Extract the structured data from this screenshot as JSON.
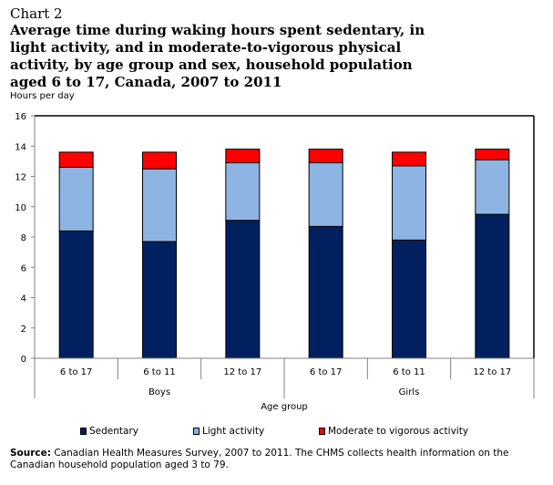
{
  "header": {
    "chart_label": "Chart 2",
    "title": "Average time during waking hours spent sedentary, in light activity, and in moderate-to-vigorous physical activity, by age group and sex, household population aged 6 to 17, Canada, 2007 to 2011",
    "y_unit": "Hours per day"
  },
  "footer": {
    "source_label": "Source:",
    "source_text": " Canadian Health Measures Survey, 2007 to 2011. The CHMS collects health information on the Canadian household population aged 3 to 79."
  },
  "colors": {
    "sedentary": "#002060",
    "light": "#8EB4E3",
    "mvpa": "#FF0000"
  },
  "chart_data": {
    "type": "bar",
    "stacked": true,
    "title": "Average time during waking hours spent sedentary, in light activity, and in moderate-to-vigorous physical activity, by age group and sex, household population aged 6 to 17, Canada, 2007 to 2011",
    "xlabel": "Age group",
    "ylabel": "Hours per day",
    "ylim": [
      0,
      16
    ],
    "yticks": [
      0,
      2,
      4,
      6,
      8,
      10,
      12,
      14,
      16
    ],
    "categories": [
      "6 to 17",
      "6 to 11",
      "12 to 17",
      "6 to 17",
      "6 to 11",
      "12 to 17"
    ],
    "groups": [
      {
        "label": "Boys",
        "span": [
          0,
          2
        ]
      },
      {
        "label": "Girls",
        "span": [
          3,
          5
        ]
      }
    ],
    "series": [
      {
        "name": "Sedentary",
        "color": "#002060",
        "values": [
          8.4,
          7.7,
          9.1,
          8.7,
          7.8,
          9.5
        ]
      },
      {
        "name": "Light activity",
        "color": "#8EB4E3",
        "values": [
          4.2,
          4.8,
          3.8,
          4.2,
          4.9,
          3.6
        ]
      },
      {
        "name": "Moderate to vigorous activity",
        "color": "#FF0000",
        "values": [
          1.0,
          1.1,
          0.9,
          0.9,
          0.9,
          0.7
        ]
      }
    ],
    "legend_position": "bottom",
    "grid": false
  }
}
